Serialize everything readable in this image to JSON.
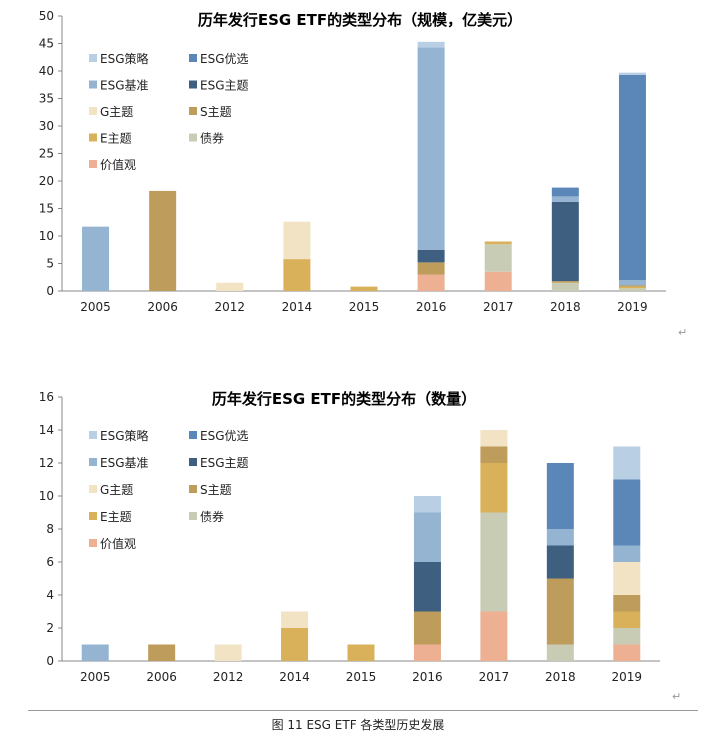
{
  "chart_data": [
    {
      "type": "bar",
      "stacked": true,
      "title": "历年发行ESG ETF的类型分布（规模，亿美元）",
      "categories": [
        "2005",
        "2006",
        "2012",
        "2014",
        "2015",
        "2016",
        "2017",
        "2018",
        "2019"
      ],
      "ylim": [
        0,
        50
      ],
      "yticks": [
        0,
        5,
        10,
        15,
        20,
        25,
        30,
        35,
        40,
        45,
        50
      ],
      "grid": false,
      "legend_position": "top-left",
      "series": [
        {
          "name": "价值观",
          "color": "#EDB093",
          "values": [
            0,
            0,
            0,
            0,
            0,
            3,
            3.5,
            0,
            0
          ]
        },
        {
          "name": "债券",
          "color": "#C9CCB5",
          "values": [
            0,
            0,
            0,
            0,
            0,
            0,
            5,
            1.5,
            0.5
          ]
        },
        {
          "name": "E主题",
          "color": "#D8B15A",
          "values": [
            0,
            0,
            0,
            5.8,
            0.8,
            0,
            0.5,
            0,
            0.3
          ]
        },
        {
          "name": "S主题",
          "color": "#BE9D5C",
          "values": [
            0,
            18.2,
            0,
            0,
            0,
            2.2,
            0,
            0.3,
            0.2
          ]
        },
        {
          "name": "G主题",
          "color": "#F2E3C4",
          "values": [
            0,
            0,
            1.5,
            6.8,
            0,
            0,
            0,
            0,
            0
          ]
        },
        {
          "name": "ESG主题",
          "color": "#3E5F80",
          "values": [
            0,
            0,
            0,
            0,
            0,
            2.3,
            0,
            14.4,
            0
          ]
        },
        {
          "name": "ESG基准",
          "color": "#95B4D2",
          "values": [
            11.7,
            0,
            0,
            0,
            0,
            36.8,
            0,
            1,
            1
          ]
        },
        {
          "name": "ESG优选",
          "color": "#5A87B8",
          "values": [
            0,
            0,
            0,
            0,
            0,
            0,
            0,
            1.6,
            37.3
          ]
        },
        {
          "name": "ESG策略",
          "color": "#B9CFE4",
          "values": [
            0,
            0,
            0,
            0,
            0,
            1,
            0,
            0,
            0.4
          ]
        }
      ]
    },
    {
      "type": "bar",
      "stacked": true,
      "title": "历年发行ESG ETF的类型分布（数量）",
      "categories": [
        "2005",
        "2006",
        "2012",
        "2014",
        "2015",
        "2016",
        "2017",
        "2018",
        "2019"
      ],
      "ylim": [
        0,
        16
      ],
      "yticks": [
        0,
        2,
        4,
        6,
        8,
        10,
        12,
        14,
        16
      ],
      "grid": false,
      "legend_position": "top-left",
      "series": [
        {
          "name": "价值观",
          "color": "#EDB093",
          "values": [
            0,
            0,
            0,
            0,
            0,
            1,
            3,
            0,
            1
          ]
        },
        {
          "name": "债券",
          "color": "#C9CCB5",
          "values": [
            0,
            0,
            0,
            0,
            0,
            0,
            6,
            1,
            1
          ]
        },
        {
          "name": "E主题",
          "color": "#D8B15A",
          "values": [
            0,
            0,
            0,
            2,
            1,
            0,
            3,
            0,
            1
          ]
        },
        {
          "name": "S主题",
          "color": "#BE9D5C",
          "values": [
            0,
            1,
            0,
            0,
            0,
            2,
            1,
            4,
            1
          ]
        },
        {
          "name": "G主题",
          "color": "#F2E3C4",
          "values": [
            0,
            0,
            1,
            1,
            0,
            0,
            1,
            0,
            2
          ]
        },
        {
          "name": "ESG主题",
          "color": "#3E5F80",
          "values": [
            0,
            0,
            0,
            0,
            0,
            3,
            0,
            2,
            0
          ]
        },
        {
          "name": "ESG基准",
          "color": "#95B4D2",
          "values": [
            1,
            0,
            0,
            0,
            0,
            3,
            0,
            1,
            1
          ]
        },
        {
          "name": "ESG优选",
          "color": "#5A87B8",
          "values": [
            0,
            0,
            0,
            0,
            0,
            0,
            0,
            4,
            4
          ]
        },
        {
          "name": "ESG策略",
          "color": "#B9CFE4",
          "values": [
            0,
            0,
            0,
            0,
            0,
            1,
            0,
            0,
            2
          ]
        }
      ]
    }
  ],
  "legend_order": [
    "ESG策略",
    "ESG优选",
    "ESG基准",
    "ESG主题",
    "G主题",
    "S主题",
    "E主题",
    "债券",
    "价值观"
  ],
  "caption": "图 11 ESG ETF 各类型历史发展",
  "return_mark": "↵"
}
